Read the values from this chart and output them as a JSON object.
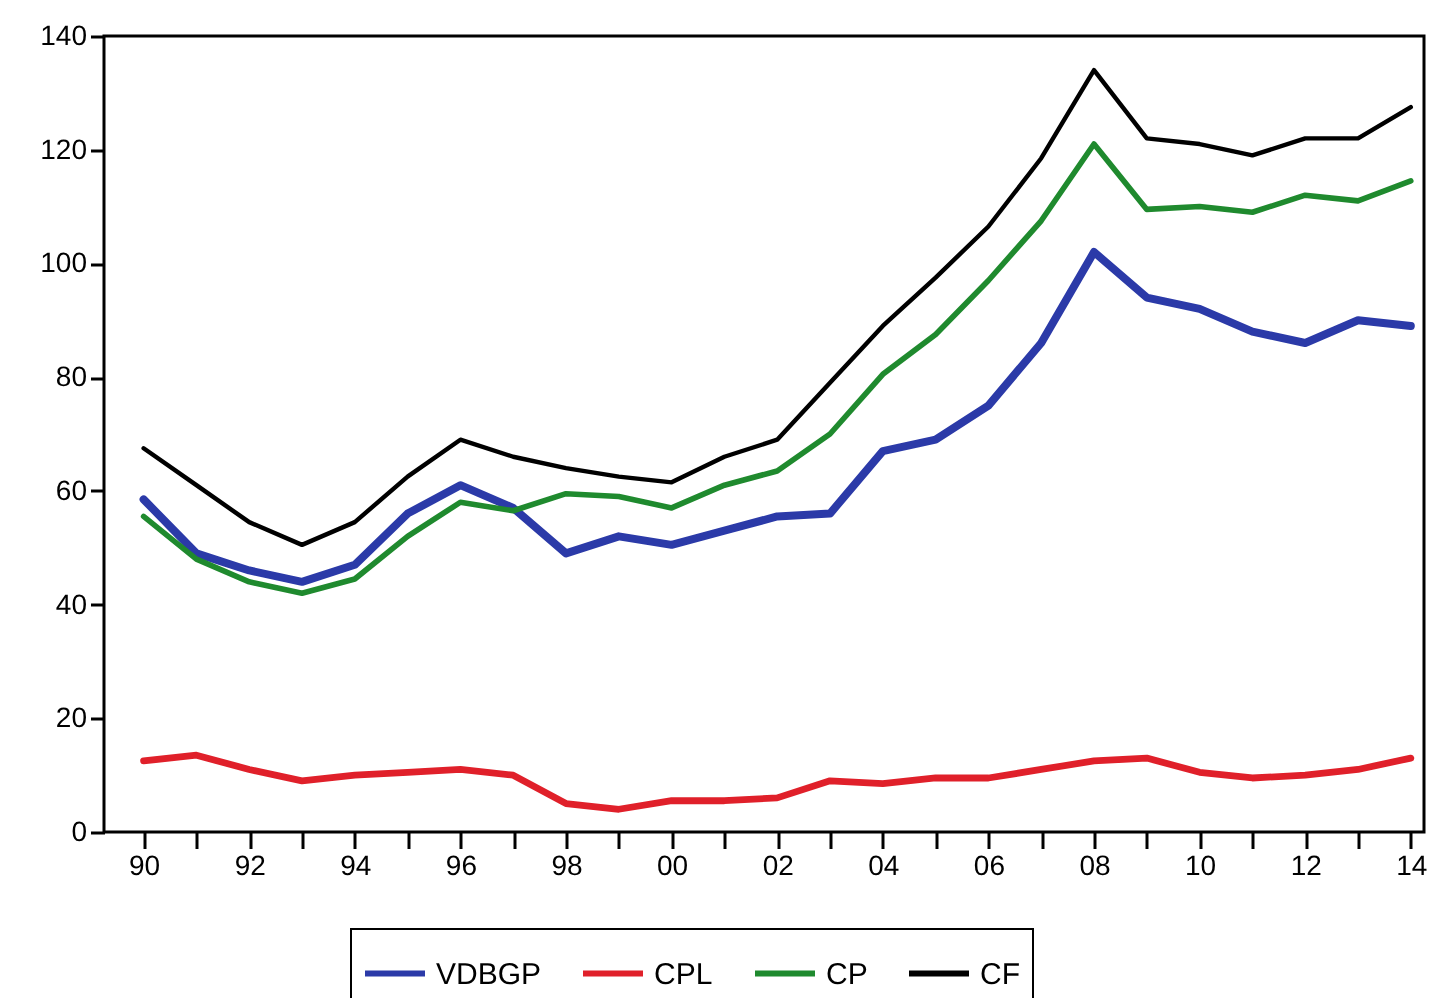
{
  "chart_data": {
    "type": "line",
    "x": [
      1990,
      1991,
      1992,
      1993,
      1994,
      1995,
      1996,
      1997,
      1998,
      1999,
      2000,
      2001,
      2002,
      2003,
      2004,
      2005,
      2006,
      2007,
      2008,
      2009,
      2010,
      2011,
      2012,
      2013,
      2014
    ],
    "series": [
      {
        "name": "VDBGP",
        "color": "#2b3aa8",
        "values": [
          58.5,
          49,
          46,
          44,
          47,
          56,
          61,
          57,
          49,
          52,
          50.5,
          53,
          55.5,
          56,
          67,
          69,
          75,
          86,
          102,
          94,
          92,
          88,
          86,
          90,
          89
        ]
      },
      {
        "name": "CPL",
        "color": "#e0202a",
        "values": [
          12.5,
          13.5,
          11,
          9,
          10,
          10.5,
          11,
          10,
          5,
          4,
          5.5,
          5.5,
          6,
          9,
          8.5,
          9.5,
          9.5,
          11,
          12.5,
          13,
          10.5,
          9.5,
          10,
          11,
          13
        ]
      },
      {
        "name": "CP",
        "color": "#1f8a2e",
        "values": [
          55.5,
          48,
          44,
          42,
          44.5,
          52,
          58,
          56.5,
          59.5,
          59,
          57,
          61,
          63.5,
          70,
          80.5,
          87.5,
          97,
          107.5,
          121,
          109.5,
          110,
          109,
          112,
          111,
          114.5
        ]
      },
      {
        "name": "CF",
        "color": "#000000",
        "values": [
          67.5,
          61,
          54.5,
          50.5,
          54.5,
          62.5,
          69,
          66,
          64,
          62.5,
          61.5,
          66,
          69,
          79,
          89,
          97.5,
          106.5,
          118.5,
          134,
          122,
          121,
          119,
          122,
          122,
          127.5
        ]
      }
    ],
    "xlim": [
      1989.25,
      2014.25
    ],
    "xticks": [
      {
        "value": 1990,
        "label": "90"
      },
      {
        "value": 1991,
        "label": null
      },
      {
        "value": 1992,
        "label": "92"
      },
      {
        "value": 1993,
        "label": null
      },
      {
        "value": 1994,
        "label": "94"
      },
      {
        "value": 1995,
        "label": null
      },
      {
        "value": 1996,
        "label": "96"
      },
      {
        "value": 1997,
        "label": null
      },
      {
        "value": 1998,
        "label": "98"
      },
      {
        "value": 1999,
        "label": null
      },
      {
        "value": 2000,
        "label": "00"
      },
      {
        "value": 2001,
        "label": null
      },
      {
        "value": 2002,
        "label": "02"
      },
      {
        "value": 2003,
        "label": null
      },
      {
        "value": 2004,
        "label": "04"
      },
      {
        "value": 2005,
        "label": null
      },
      {
        "value": 2006,
        "label": "06"
      },
      {
        "value": 2007,
        "label": null
      },
      {
        "value": 2008,
        "label": "08"
      },
      {
        "value": 2009,
        "label": null
      },
      {
        "value": 2010,
        "label": "10"
      },
      {
        "value": 2011,
        "label": null
      },
      {
        "value": 2012,
        "label": "12"
      },
      {
        "value": 2013,
        "label": null
      },
      {
        "value": 2014,
        "label": "14"
      }
    ],
    "ylim": [
      0,
      140
    ],
    "yticks": [
      0,
      20,
      40,
      60,
      80,
      100,
      120,
      140
    ],
    "grid": false,
    "legend": "bottom",
    "line_style": "solid"
  }
}
